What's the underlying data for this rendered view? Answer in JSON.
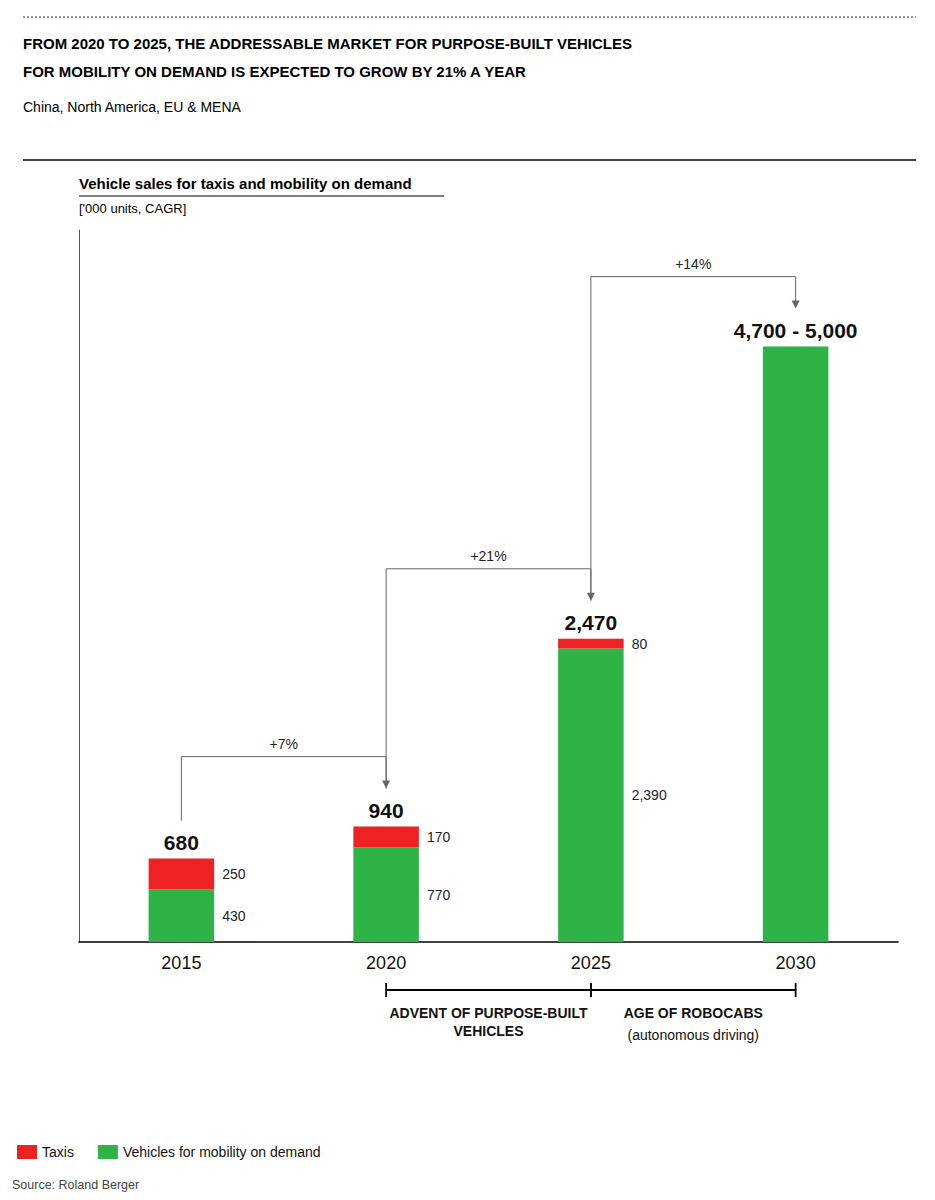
{
  "chart_data": {
    "type": "bar",
    "stacked": true,
    "headline": [
      "FROM 2020 TO 2025, THE ADDRESSABLE MARKET FOR PURPOSE-BUILT VEHICLES",
      "FOR MOBILITY ON DEMAND IS EXPECTED TO GROW BY 21% A YEAR"
    ],
    "headline_subtitle": "China, North America, EU & MENA",
    "title": "Vehicle sales for taxis and mobility on demand",
    "subtitle": "['000 units, CAGR]",
    "categories": [
      "2015",
      "2020",
      "2025",
      "2030"
    ],
    "series": [
      {
        "name": "Vehicles for mobility on demand",
        "color": "#2db346",
        "values": [
          430,
          770,
          2390,
          4850
        ],
        "value_labels": [
          "430",
          "770",
          "2,390",
          null
        ]
      },
      {
        "name": "Taxis",
        "color": "#ee2222",
        "values": [
          250,
          170,
          80,
          0
        ],
        "value_labels": [
          "250",
          "170",
          "80",
          null
        ]
      }
    ],
    "data_labels": true,
    "totals": [
      "680",
      "940",
      "2,470",
      "4,700 - 5,000"
    ],
    "cagr": [
      {
        "from": "2015",
        "to": "2020",
        "label": "+7%"
      },
      {
        "from": "2020",
        "to": "2025",
        "label": "+21%"
      },
      {
        "from": "2025",
        "to": "2030",
        "label": "+14%"
      }
    ],
    "eras": [
      {
        "from": "2020",
        "to": "2025",
        "labels": [
          "ADVENT OF PURPOSE-BUILT\nVEHICLES"
        ]
      },
      {
        "from": "2025",
        "to": "2030",
        "labels": [
          "AGE OF ROBOCABS",
          "(autonomous driving)"
        ]
      }
    ],
    "ylim": [
      0,
      5800
    ],
    "yticks": [],
    "tick_labels": "x",
    "grid": false,
    "legend": "bottom-left",
    "source": "Source: Roland Berger"
  }
}
